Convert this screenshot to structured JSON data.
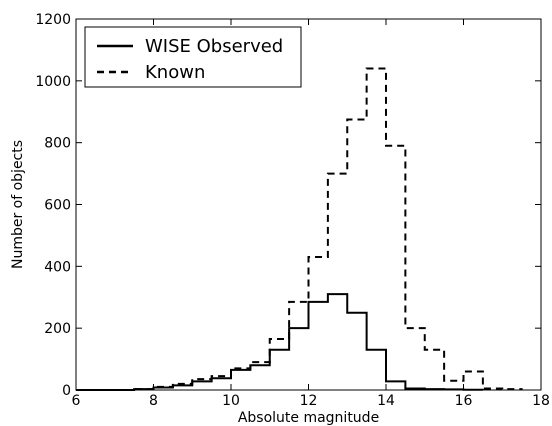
{
  "chart_data": {
    "type": "line",
    "xlabel": "Absolute magnitude",
    "ylabel": "Number of objects",
    "xlim": [
      6,
      18
    ],
    "ylim": [
      0,
      1200
    ],
    "xticks": [
      6,
      8,
      10,
      12,
      14,
      16,
      18
    ],
    "yticks": [
      0,
      200,
      400,
      600,
      800,
      1000,
      1200
    ],
    "grid": false,
    "legend_position": "top-left",
    "bin_width": 0.5,
    "series": [
      {
        "name": "WISE Observed",
        "style": "solid",
        "color": "#000000",
        "x": [
          7.5,
          8.0,
          8.5,
          9.0,
          9.5,
          10.0,
          10.5,
          11.0,
          11.5,
          12.0,
          12.5,
          13.0,
          13.5,
          14.0,
          14.5,
          15.0,
          15.5,
          16.0
        ],
        "values": [
          3,
          8,
          15,
          28,
          38,
          65,
          80,
          130,
          200,
          285,
          310,
          250,
          130,
          28,
          5,
          3,
          2,
          1
        ]
      },
      {
        "name": "Known",
        "style": "dashed",
        "color": "#000000",
        "x": [
          7.5,
          8.0,
          8.5,
          9.0,
          9.5,
          10.0,
          10.5,
          11.0,
          11.5,
          12.0,
          12.5,
          13.0,
          13.5,
          14.0,
          14.5,
          15.0,
          15.5,
          16.0,
          16.5,
          17.0
        ],
        "values": [
          3,
          10,
          20,
          35,
          45,
          70,
          90,
          165,
          285,
          430,
          700,
          875,
          1040,
          790,
          200,
          130,
          30,
          60,
          5,
          3
        ]
      }
    ]
  }
}
